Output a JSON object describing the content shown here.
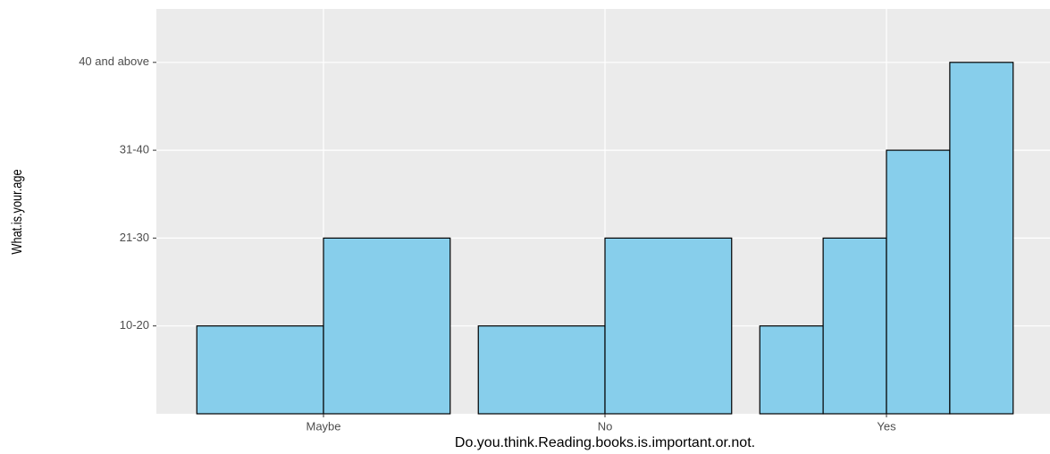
{
  "chart_data": {
    "type": "bar",
    "x_label": "Do.you.think.Reading.books.is.important.or.not.",
    "y_label": "What.is.your.age",
    "categories": [
      "Maybe",
      "No",
      "Yes"
    ],
    "y_categories": [
      "10-20",
      "21-30",
      "31-40",
      "40 and above"
    ],
    "bars": [
      [
        "10-20",
        "21-30"
      ],
      [
        "10-20",
        "21-30"
      ],
      [
        "10-20",
        "21-30",
        "31-40",
        "40 and above"
      ]
    ],
    "color": "#87ceeb",
    "grid": true
  }
}
